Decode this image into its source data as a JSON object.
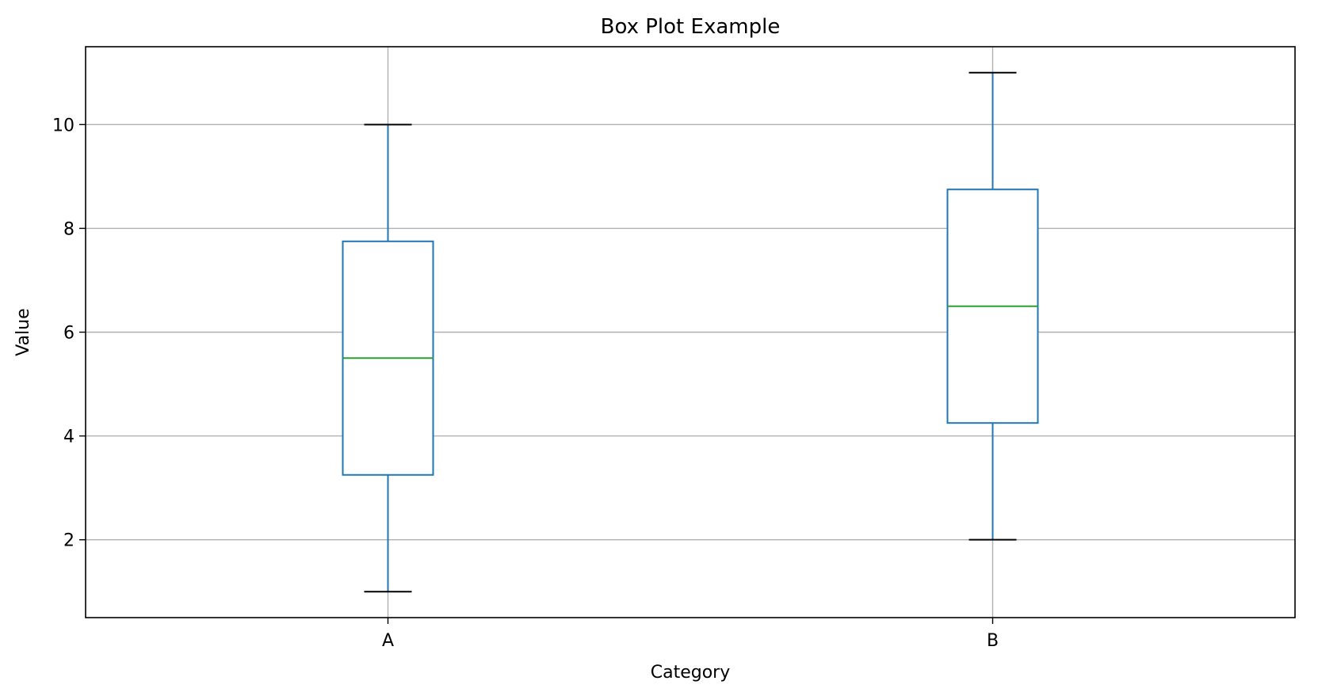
{
  "chart_data": {
    "type": "box",
    "title": "Box Plot Example",
    "xlabel": "Category",
    "ylabel": "Value",
    "categories": [
      "A",
      "B"
    ],
    "boxes": [
      {
        "category": "A",
        "whisker_low": 1,
        "q1": 3.25,
        "median": 5.5,
        "q3": 7.75,
        "whisker_high": 10
      },
      {
        "category": "B",
        "whisker_low": 2,
        "q1": 4.25,
        "median": 6.5,
        "q3": 8.75,
        "whisker_high": 11
      }
    ],
    "ylim": [
      0.5,
      11.5
    ],
    "yticks": [
      2,
      4,
      6,
      8,
      10
    ],
    "ytick_labels": [
      "2",
      "4",
      "6",
      "8",
      "10"
    ],
    "grid": true,
    "legend": "none",
    "colors": {
      "box": "#1f77b4",
      "median": "#2ca02c",
      "caps": "#000000",
      "grid": "#b0b0b0",
      "frame": "#000000"
    }
  }
}
